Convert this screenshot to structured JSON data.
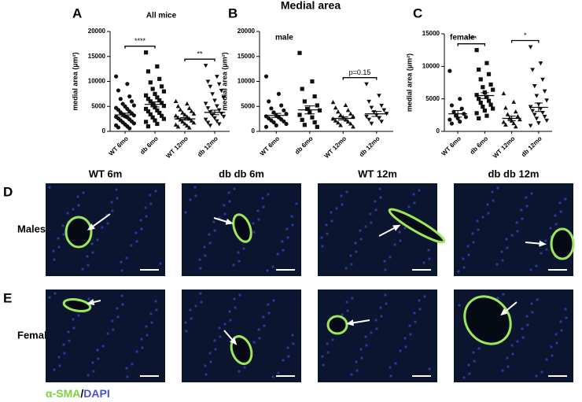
{
  "figure_title": "Medial area",
  "chart_data": [
    {
      "type": "dotplot",
      "panel": "A",
      "title": "All mice",
      "y_label": "medial area (µm²)",
      "categories": [
        "WT 6mo",
        "db 6mo",
        "WT 12mo",
        "db 12mo"
      ],
      "markers": [
        "circle",
        "square",
        "triangle-up",
        "triangle-down"
      ],
      "color": "#111111",
      "values": [
        [
          11000,
          9500,
          8200,
          7000,
          6500,
          6000,
          5500,
          5200,
          5000,
          4700,
          4500,
          4300,
          4000,
          3800,
          3600,
          3400,
          3200,
          3000,
          2900,
          2800,
          2600,
          2400,
          2200,
          2000,
          1800,
          1600,
          1400,
          1200,
          1000,
          800,
          600
        ],
        [
          15800,
          13000,
          12000,
          10500,
          9800,
          9000,
          8500,
          8000,
          7500,
          7200,
          6800,
          6500,
          6200,
          6000,
          5700,
          5400,
          5100,
          4800,
          4500,
          4200,
          4000,
          3700,
          3400,
          3100,
          2800,
          2500,
          2200,
          1900,
          1500,
          1000
        ],
        [
          6000,
          5500,
          5000,
          4600,
          4300,
          4000,
          3700,
          3500,
          3300,
          3100,
          2900,
          2700,
          2500,
          2300,
          2100,
          1900,
          1700,
          1500,
          1300,
          1100,
          900,
          700
        ],
        [
          13200,
          11000,
          10000,
          9500,
          9000,
          8200,
          7500,
          6800,
          6200,
          5600,
          5100,
          4700,
          4300,
          3900,
          3600,
          3300,
          3000,
          2700,
          2400,
          2100,
          1800,
          1500,
          1200
        ]
      ],
      "means": [
        3300,
        5400,
        2500,
        3800
      ],
      "sems": [
        350,
        500,
        250,
        450
      ],
      "ylim": [
        0,
        20000
      ],
      "yticks": [
        0,
        5000,
        10000,
        15000,
        20000
      ],
      "comparisons": [
        {
          "label": "****",
          "groups": [
            "WT 6mo",
            "db 6mo"
          ]
        },
        {
          "label": "**",
          "groups": [
            "WT 12mo",
            "db 12mo"
          ]
        }
      ]
    },
    {
      "type": "dotplot",
      "panel": "B",
      "title": "male",
      "y_label": "medial area (µm²)",
      "categories": [
        "WT 6mo",
        "db 6mo",
        "WT 12mo",
        "db 12mo"
      ],
      "markers": [
        "circle",
        "square",
        "triangle-up",
        "triangle-down"
      ],
      "color": "#111111",
      "values": [
        [
          11000,
          7500,
          6000,
          5200,
          4600,
          4200,
          3800,
          3500,
          3200,
          3000,
          2800,
          2600,
          2400,
          2200,
          2000,
          1800,
          1500,
          1200,
          900
        ],
        [
          15700,
          10000,
          8500,
          7000,
          6000,
          5200,
          4500,
          4200,
          3800,
          3300,
          2800,
          2300,
          1800,
          1300,
          900
        ],
        [
          5800,
          5200,
          4700,
          4200,
          3900,
          3500,
          3200,
          3000,
          2800,
          2500,
          2300,
          2100,
          1900,
          1700,
          1500,
          1200,
          900
        ],
        [
          9500,
          7200,
          6000,
          5200,
          4800,
          4300,
          3900,
          3600,
          3300,
          3000,
          2700,
          2400,
          2000,
          1600
        ]
      ],
      "means": [
        3200,
        4300,
        2600,
        3500
      ],
      "sems": [
        400,
        800,
        300,
        500
      ],
      "ylim": [
        0,
        20000
      ],
      "yticks": [
        0,
        5000,
        10000,
        15000,
        20000
      ],
      "comparisons": [
        {
          "label": "p=0.15",
          "groups": [
            "WT 12mo",
            "db 12mo"
          ]
        }
      ]
    },
    {
      "type": "dotplot",
      "panel": "C",
      "title": "female",
      "y_label": "medial area (µm²)",
      "categories": [
        "WT 6mo",
        "db 6mo",
        "WT 12mo",
        "db 12mo"
      ],
      "markers": [
        "circle",
        "square",
        "triangle-up",
        "triangle-down"
      ],
      "color": "#111111",
      "values": [
        [
          9300,
          5000,
          4000,
          3500,
          3000,
          2700,
          2500,
          2200,
          2000,
          1800,
          1500,
          1200
        ],
        [
          12500,
          10500,
          9500,
          8800,
          8000,
          7200,
          6800,
          6400,
          6000,
          5600,
          5300,
          5000,
          4700,
          4400,
          4100,
          3800,
          3500,
          3200,
          2800,
          2400,
          2000
        ],
        [
          5800,
          4500,
          3600,
          3000,
          2600,
          2300,
          2000,
          1800,
          1600,
          1400,
          1200,
          1000,
          700
        ],
        [
          13000,
          10500,
          9500,
          8000,
          7000,
          6200,
          5500,
          4800,
          4200,
          3800,
          3500,
          3200,
          2900,
          2600,
          2300,
          2000,
          1700,
          1300,
          900
        ]
      ],
      "means": [
        2700,
        5500,
        2000,
        3700
      ],
      "sems": [
        500,
        450,
        350,
        650
      ],
      "ylim": [
        0,
        15000
      ],
      "yticks": [
        0,
        5000,
        10000,
        15000
      ],
      "comparisons": [
        {
          "label": "****",
          "groups": [
            "WT 6mo",
            "db 6mo"
          ]
        },
        {
          "label": "*",
          "groups": [
            "WT 12mo",
            "db 12mo"
          ]
        }
      ]
    }
  ],
  "micrographs": {
    "columns": [
      "WT 6m",
      "db db 6m",
      "WT 12m",
      "db db 12m"
    ],
    "rows": [
      {
        "letter": "D",
        "label": "Males"
      },
      {
        "letter": "E",
        "label": "Females"
      }
    ]
  },
  "stain_legend": {
    "marker": "α-SMA",
    "separator": "/",
    "counterstain": "DAPI"
  }
}
